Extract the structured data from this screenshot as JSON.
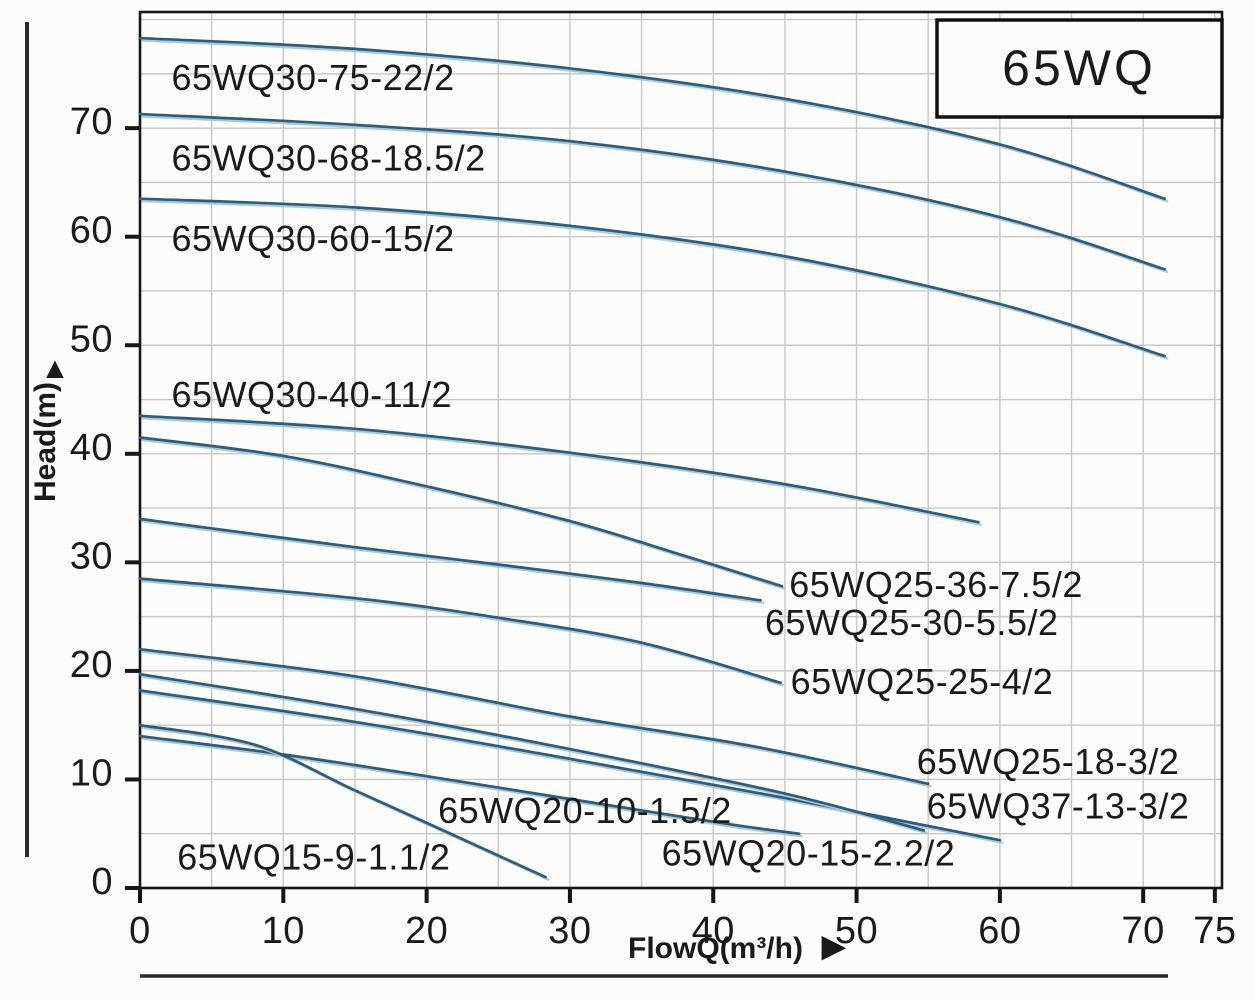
{
  "title_box": {
    "label": "65WQ"
  },
  "colors": {
    "curve": "#2d5c7d",
    "curve_highlight": "#aac8dd",
    "grid": "#c6c8ca",
    "frame": "#161616",
    "text": "#1a1a1a",
    "background": "#fcfcfa"
  },
  "chart_data": {
    "type": "line",
    "title": "65WQ",
    "xlabel": "FlowQ(m³/h)",
    "xlabel_arrow": "▶",
    "ylabel": "Head(m)",
    "ylabel_arrow": "▲",
    "xlim": [
      0,
      75
    ],
    "ylim": [
      0,
      80.7
    ],
    "x_ticks": [
      0,
      10,
      20,
      30,
      40,
      50,
      60,
      70,
      75
    ],
    "y_ticks": [
      0,
      10,
      20,
      30,
      40,
      50,
      60,
      70
    ],
    "grid": true,
    "grid_step": 5,
    "legend_position": "none",
    "series": [
      {
        "name": "65WQ30-75-22/2",
        "points": [
          [
            0,
            78.3
          ],
          [
            15,
            77.3
          ],
          [
            30,
            75.5
          ],
          [
            45,
            72.7
          ],
          [
            60,
            68.5
          ],
          [
            71.5,
            63.5
          ]
        ],
        "label": {
          "q": 2.2,
          "h": 74.6
        }
      },
      {
        "name": "65WQ30-68-18.5/2",
        "points": [
          [
            0,
            71.3
          ],
          [
            15,
            70.3
          ],
          [
            30,
            68.8
          ],
          [
            45,
            66.0
          ],
          [
            60,
            61.8
          ],
          [
            71.5,
            57.0
          ]
        ],
        "label": {
          "q": 2.2,
          "h": 67.2
        }
      },
      {
        "name": "65WQ30-60-15/2",
        "points": [
          [
            0,
            63.5
          ],
          [
            15,
            62.7
          ],
          [
            30,
            61.0
          ],
          [
            45,
            58.2
          ],
          [
            60,
            53.8
          ],
          [
            71.5,
            49.0
          ]
        ],
        "label": {
          "q": 2.2,
          "h": 59.8
        }
      },
      {
        "name": "65WQ30-40-11/2",
        "points": [
          [
            0,
            43.5
          ],
          [
            15,
            42.3
          ],
          [
            30,
            40.1
          ],
          [
            45,
            37.2
          ],
          [
            58.5,
            33.7
          ]
        ],
        "label": {
          "q": 2.2,
          "h": 45.4
        }
      },
      {
        "name": "65WQ25-36-7.5/2",
        "points": [
          [
            0,
            41.5
          ],
          [
            10,
            39.8
          ],
          [
            20,
            37.0
          ],
          [
            30,
            33.8
          ],
          [
            38,
            30.6
          ],
          [
            44.8,
            27.8
          ]
        ],
        "label": {
          "q": 45.3,
          "h": 27.9
        }
      },
      {
        "name": "65WQ25-30-5.5/2",
        "points": [
          [
            0,
            34.0
          ],
          [
            15,
            31.4
          ],
          [
            25,
            29.8
          ],
          [
            35,
            28.1
          ],
          [
            43.3,
            26.5
          ]
        ],
        "label": {
          "q": 43.6,
          "h": 24.4
        }
      },
      {
        "name": "65WQ25-25-4/2",
        "points": [
          [
            0,
            28.5
          ],
          [
            15,
            26.7
          ],
          [
            25,
            24.9
          ],
          [
            35,
            22.6
          ],
          [
            44.7,
            18.9
          ]
        ],
        "label": {
          "q": 45.4,
          "h": 19.0
        }
      },
      {
        "name": "65WQ25-18-3/2",
        "points": [
          [
            0,
            22.0
          ],
          [
            15,
            19.5
          ],
          [
            30,
            15.8
          ],
          [
            43,
            13.0
          ],
          [
            55,
            9.6
          ]
        ],
        "label": {
          "q": 54.2,
          "h": 11.6
        }
      },
      {
        "name": "65WQ37-13-3/2",
        "points": [
          [
            0,
            18.2
          ],
          [
            15,
            15.3
          ],
          [
            30,
            11.9
          ],
          [
            45,
            8.3
          ],
          [
            60,
            4.4
          ]
        ],
        "label": {
          "q": 54.9,
          "h": 7.5
        }
      },
      {
        "name": "65WQ20-10-1.5/2",
        "points": [
          [
            0,
            14.0
          ],
          [
            10,
            12.3
          ],
          [
            20,
            10.3
          ],
          [
            30,
            8.2
          ],
          [
            41,
            5.9
          ],
          [
            46,
            5.0
          ]
        ],
        "label": {
          "q": 20.8,
          "h": 7.1
        }
      },
      {
        "name": "65WQ20-15-2.2/2",
        "points": [
          [
            0,
            19.7
          ],
          [
            15,
            16.5
          ],
          [
            30,
            12.8
          ],
          [
            45,
            8.7
          ],
          [
            54.7,
            5.3
          ]
        ],
        "label": {
          "q": 36.4,
          "h": 3.2
        }
      },
      {
        "name": "65WQ15-9-1.1/2",
        "points": [
          [
            0,
            15.0
          ],
          [
            8,
            13.2
          ],
          [
            15,
            9.0
          ],
          [
            22,
            4.8
          ],
          [
            28.3,
            1.0
          ]
        ],
        "label": {
          "q": 2.6,
          "h": 2.8
        }
      }
    ]
  }
}
